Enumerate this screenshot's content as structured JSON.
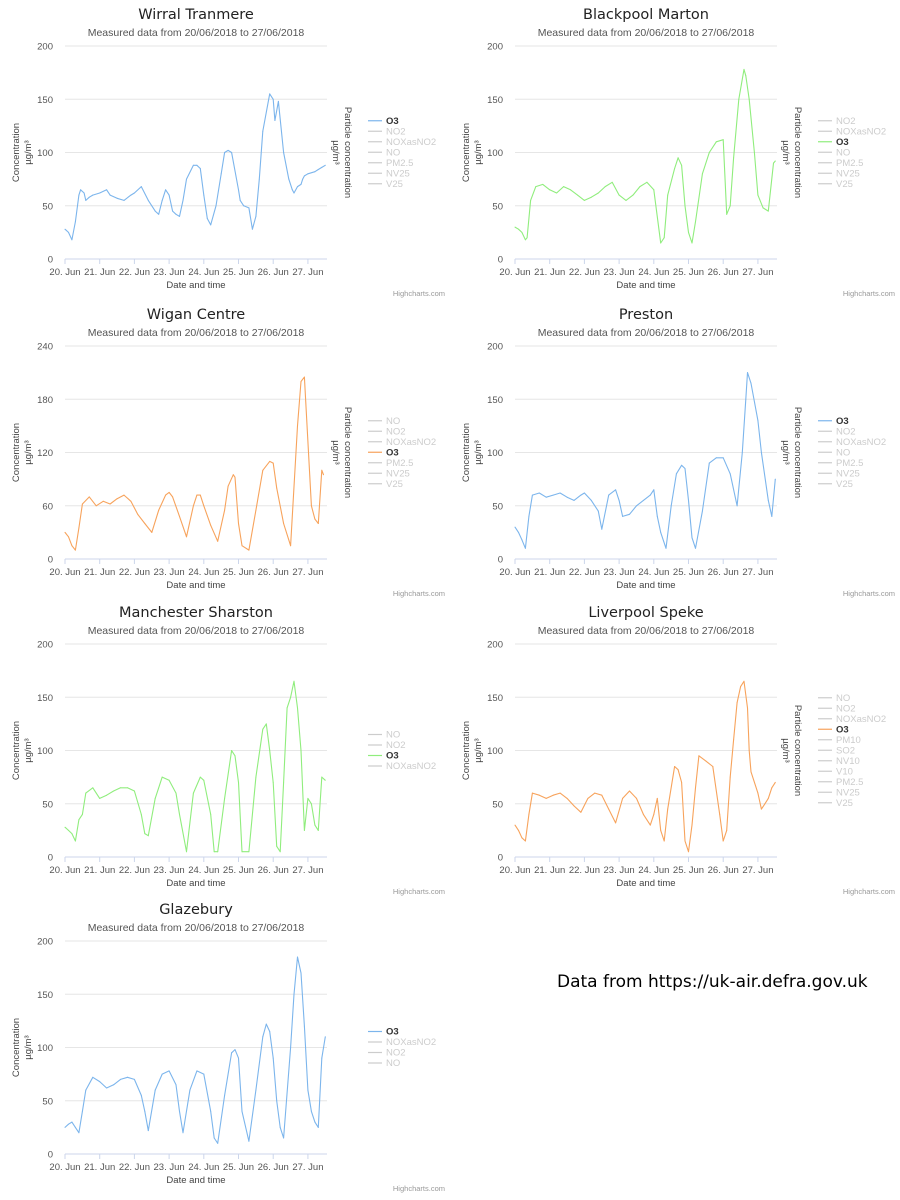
{
  "source_note": "Data from https://uk-air.defra.gov.uk",
  "colors": {
    "blue": "#7cb5ec",
    "green": "#90ed7d",
    "orange": "#f7a35c",
    "inactive": "#cccccc",
    "grid": "#e6e6e6"
  },
  "chart_data": [
    {
      "type": "line",
      "title": "Wirral Tranmere",
      "subtitle": "Measured data from 20/06/2018 to 27/06/2018",
      "xlabel": "Date and time",
      "ylabel": "Concentration",
      "ylabel_unit": "µg/m³",
      "y2label": "Particle concentration",
      "y2label_unit": "µg/m³",
      "credit": "Highcharts.com",
      "x_ticks": [
        "20. Jun",
        "21. Jun",
        "22. Jun",
        "23. Jun",
        "24. Jun",
        "25. Jun",
        "26. Jun",
        "27. Jun"
      ],
      "ylim": [
        0,
        200
      ],
      "y_ticks": [
        0,
        50,
        100,
        150,
        200
      ],
      "xlim": [
        0,
        7.55
      ],
      "legend": [
        "O3",
        "NO2",
        "NOXasNO2",
        "NO",
        "PM2.5",
        "NV25",
        "V25"
      ],
      "active_series": "O3",
      "series_color": "#7cb5ec",
      "series": [
        {
          "name": "O3",
          "x": [
            0,
            0.1,
            0.2,
            0.3,
            0.4,
            0.45,
            0.55,
            0.6,
            0.7,
            0.8,
            1.0,
            1.2,
            1.3,
            1.5,
            1.7,
            1.9,
            2.0,
            2.2,
            2.4,
            2.6,
            2.7,
            2.8,
            2.9,
            3.0,
            3.1,
            3.2,
            3.3,
            3.4,
            3.5,
            3.7,
            3.8,
            3.9,
            4.0,
            4.1,
            4.2,
            4.35,
            4.5,
            4.6,
            4.7,
            4.8,
            5.0,
            5.05,
            5.15,
            5.3,
            5.4,
            5.5,
            5.6,
            5.7,
            5.9,
            6.0,
            6.05,
            6.15,
            6.3,
            6.45,
            6.55,
            6.6,
            6.7,
            6.8,
            6.85,
            6.9,
            7.0,
            7.2,
            7.3,
            7.4,
            7.5
          ],
          "values": [
            28,
            25,
            18,
            35,
            60,
            65,
            62,
            55,
            58,
            60,
            62,
            65,
            60,
            57,
            55,
            60,
            62,
            68,
            55,
            45,
            42,
            55,
            65,
            60,
            45,
            42,
            40,
            55,
            75,
            88,
            88,
            85,
            60,
            38,
            32,
            50,
            80,
            100,
            102,
            100,
            65,
            55,
            50,
            48,
            28,
            40,
            75,
            120,
            155,
            150,
            130,
            148,
            100,
            75,
            65,
            62,
            68,
            70,
            75,
            78,
            80,
            82,
            84,
            86,
            88
          ]
        }
      ]
    },
    {
      "type": "line",
      "title": "Blackpool Marton",
      "subtitle": "Measured data from 20/06/2018 to 27/06/2018",
      "xlabel": "Date and time",
      "ylabel": "Concentration",
      "ylabel_unit": "µg/m³",
      "y2label": "Particle concentration",
      "y2label_unit": "µg/m³",
      "credit": "Highcharts.com",
      "x_ticks": [
        "20. Jun",
        "21. Jun",
        "22. Jun",
        "23. Jun",
        "24. Jun",
        "25. Jun",
        "26. Jun",
        "27. Jun"
      ],
      "ylim": [
        0,
        200
      ],
      "y_ticks": [
        0,
        50,
        100,
        150,
        200
      ],
      "xlim": [
        0,
        7.55
      ],
      "legend": [
        "NO2",
        "NOXasNO2",
        "O3",
        "NO",
        "PM2.5",
        "NV25",
        "V25"
      ],
      "active_series": "O3",
      "series_color": "#90ed7d",
      "series": [
        {
          "name": "O3",
          "x": [
            0,
            0.1,
            0.2,
            0.3,
            0.35,
            0.45,
            0.6,
            0.8,
            1.0,
            1.2,
            1.4,
            1.6,
            1.8,
            2.0,
            2.2,
            2.4,
            2.6,
            2.8,
            3.0,
            3.2,
            3.4,
            3.6,
            3.8,
            4.0,
            4.2,
            4.3,
            4.4,
            4.6,
            4.7,
            4.8,
            4.9,
            5.0,
            5.1,
            5.2,
            5.4,
            5.6,
            5.8,
            6.0,
            6.1,
            6.2,
            6.3,
            6.45,
            6.6,
            6.65,
            6.75,
            6.9,
            7.0,
            7.15,
            7.3,
            7.45,
            7.5
          ],
          "values": [
            30,
            28,
            25,
            18,
            20,
            55,
            68,
            70,
            65,
            62,
            68,
            65,
            60,
            55,
            58,
            62,
            68,
            72,
            60,
            55,
            60,
            68,
            72,
            65,
            15,
            20,
            60,
            85,
            95,
            88,
            50,
            25,
            15,
            35,
            80,
            100,
            110,
            112,
            42,
            50,
            95,
            150,
            178,
            172,
            150,
            100,
            60,
            48,
            45,
            90,
            92
          ]
        }
      ]
    },
    {
      "type": "line",
      "title": "Wigan Centre",
      "subtitle": "Measured data from 20/06/2018 to 27/06/2018",
      "xlabel": "Date and time",
      "ylabel": "Concentration",
      "ylabel_unit": "µg/m³",
      "y2label": "Particle concentration",
      "y2label_unit": "µg/m³",
      "credit": "Highcharts.com",
      "x_ticks": [
        "20. Jun",
        "21. Jun",
        "22. Jun",
        "23. Jun",
        "24. Jun",
        "25. Jun",
        "26. Jun",
        "27. Jun"
      ],
      "ylim": [
        0,
        240
      ],
      "y_ticks": [
        0,
        60,
        120,
        180,
        240
      ],
      "xlim": [
        0,
        7.55
      ],
      "legend": [
        "NO",
        "NO2",
        "NOXasNO2",
        "O3",
        "PM2.5",
        "NV25",
        "V25"
      ],
      "active_series": "O3",
      "series_color": "#f7a35c",
      "series": [
        {
          "name": "O3",
          "x": [
            0,
            0.1,
            0.2,
            0.3,
            0.4,
            0.5,
            0.7,
            0.9,
            1.1,
            1.3,
            1.5,
            1.7,
            1.9,
            2.1,
            2.3,
            2.5,
            2.7,
            2.9,
            3.0,
            3.1,
            3.3,
            3.5,
            3.7,
            3.8,
            3.9,
            4.0,
            4.2,
            4.4,
            4.6,
            4.7,
            4.85,
            4.9,
            5.0,
            5.1,
            5.3,
            5.5,
            5.7,
            5.9,
            6.0,
            6.1,
            6.3,
            6.5,
            6.7,
            6.8,
            6.9,
            7.1,
            7.2,
            7.3,
            7.4,
            7.45
          ],
          "values": [
            30,
            25,
            15,
            10,
            35,
            62,
            70,
            60,
            65,
            62,
            68,
            72,
            65,
            50,
            40,
            30,
            55,
            72,
            75,
            70,
            48,
            25,
            60,
            72,
            72,
            60,
            38,
            20,
            55,
            82,
            95,
            92,
            40,
            15,
            10,
            55,
            100,
            110,
            108,
            80,
            40,
            15,
            150,
            200,
            205,
            60,
            45,
            40,
            100,
            95
          ]
        }
      ]
    },
    {
      "type": "line",
      "title": "Preston",
      "subtitle": "Measured data from 20/06/2018 to 27/06/2018",
      "xlabel": "Date and time",
      "ylabel": "Concentration",
      "ylabel_unit": "µg/m³",
      "y2label": "Particle concentration",
      "y2label_unit": "µg/m³",
      "credit": "Highcharts.com",
      "x_ticks": [
        "20. Jun",
        "21. Jun",
        "22. Jun",
        "23. Jun",
        "24. Jun",
        "25. Jun",
        "26. Jun",
        "27. Jun"
      ],
      "ylim": [
        0,
        200
      ],
      "y_ticks": [
        0,
        50,
        100,
        150,
        200
      ],
      "xlim": [
        0,
        7.55
      ],
      "legend": [
        "O3",
        "NO2",
        "NOXasNO2",
        "NO",
        "PM2.5",
        "NV25",
        "V25"
      ],
      "active_series": "O3",
      "series_color": "#7cb5ec",
      "series": [
        {
          "name": "O3",
          "x": [
            0,
            0.1,
            0.2,
            0.3,
            0.4,
            0.5,
            0.7,
            0.9,
            1.1,
            1.3,
            1.5,
            1.7,
            1.9,
            2.0,
            2.2,
            2.4,
            2.5,
            2.7,
            2.9,
            3.0,
            3.1,
            3.3,
            3.5,
            3.7,
            3.9,
            4.0,
            4.1,
            4.2,
            4.35,
            4.5,
            4.65,
            4.8,
            4.9,
            5.0,
            5.1,
            5.2,
            5.4,
            5.6,
            5.8,
            6.0,
            6.2,
            6.4,
            6.55,
            6.65,
            6.7,
            6.8,
            7.0,
            7.1,
            7.3,
            7.4,
            7.5
          ],
          "values": [
            30,
            25,
            18,
            10,
            40,
            60,
            62,
            58,
            60,
            62,
            58,
            55,
            60,
            62,
            55,
            45,
            28,
            60,
            65,
            55,
            40,
            42,
            50,
            55,
            60,
            65,
            40,
            25,
            10,
            50,
            80,
            88,
            85,
            55,
            20,
            10,
            45,
            90,
            95,
            95,
            80,
            50,
            100,
            150,
            175,
            165,
            130,
            100,
            55,
            40,
            75
          ]
        }
      ]
    },
    {
      "type": "line",
      "title": "Manchester Sharston",
      "subtitle": "Measured data from 20/06/2018 to 27/06/2018",
      "xlabel": "Date and time",
      "ylabel": "Concentration",
      "ylabel_unit": "µg/m³",
      "credit": "Highcharts.com",
      "x_ticks": [
        "20. Jun",
        "21. Jun",
        "22. Jun",
        "23. Jun",
        "24. Jun",
        "25. Jun",
        "26. Jun",
        "27. Jun"
      ],
      "ylim": [
        0,
        200
      ],
      "y_ticks": [
        0,
        50,
        100,
        150,
        200
      ],
      "xlim": [
        0,
        7.55
      ],
      "legend": [
        "NO",
        "NO2",
        "O3",
        "NOXasNO2"
      ],
      "active_series": "O3",
      "series_color": "#90ed7d",
      "series": [
        {
          "name": "O3",
          "x": [
            0,
            0.1,
            0.2,
            0.3,
            0.4,
            0.5,
            0.6,
            0.8,
            1.0,
            1.2,
            1.4,
            1.6,
            1.8,
            2.0,
            2.2,
            2.3,
            2.4,
            2.6,
            2.8,
            3.0,
            3.2,
            3.3,
            3.5,
            3.7,
            3.9,
            4.0,
            4.2,
            4.3,
            4.4,
            4.6,
            4.8,
            4.9,
            5.0,
            5.1,
            5.3,
            5.5,
            5.7,
            5.8,
            5.9,
            6.0,
            6.1,
            6.2,
            6.3,
            6.4,
            6.5,
            6.6,
            6.7,
            6.8,
            6.9,
            7.0,
            7.1,
            7.2,
            7.3,
            7.4,
            7.5
          ],
          "values": [
            28,
            25,
            22,
            15,
            35,
            40,
            60,
            65,
            55,
            58,
            62,
            65,
            65,
            62,
            40,
            22,
            20,
            55,
            75,
            72,
            60,
            40,
            5,
            60,
            75,
            72,
            40,
            5,
            5,
            55,
            100,
            95,
            70,
            5,
            5,
            75,
            120,
            125,
            100,
            70,
            10,
            5,
            70,
            140,
            150,
            165,
            140,
            100,
            25,
            55,
            50,
            30,
            25,
            75,
            72
          ]
        }
      ]
    },
    {
      "type": "line",
      "title": "Liverpool Speke",
      "subtitle": "Measured data from 20/06/2018 to 27/06/2018",
      "xlabel": "Date and time",
      "ylabel": "Concentration",
      "ylabel_unit": "µg/m³",
      "y2label": "Particle concentration",
      "y2label_unit": "µg/m³",
      "credit": "Highcharts.com",
      "x_ticks": [
        "20. Jun",
        "21. Jun",
        "22. Jun",
        "23. Jun",
        "24. Jun",
        "25. Jun",
        "26. Jun",
        "27. Jun"
      ],
      "ylim": [
        0,
        200
      ],
      "y_ticks": [
        0,
        50,
        100,
        150,
        200
      ],
      "xlim": [
        0,
        7.55
      ],
      "legend": [
        "NO",
        "NO2",
        "NOXasNO2",
        "O3",
        "PM10",
        "SO2",
        "NV10",
        "V10",
        "PM2.5",
        "NV25",
        "V25"
      ],
      "active_series": "O3",
      "series_color": "#f7a35c",
      "series": [
        {
          "name": "O3",
          "x": [
            0,
            0.1,
            0.2,
            0.3,
            0.4,
            0.5,
            0.7,
            0.9,
            1.1,
            1.3,
            1.5,
            1.7,
            1.9,
            2.1,
            2.3,
            2.5,
            2.7,
            2.9,
            3.1,
            3.3,
            3.5,
            3.7,
            3.9,
            4.0,
            4.1,
            4.2,
            4.3,
            4.4,
            4.6,
            4.7,
            4.8,
            4.9,
            5.0,
            5.1,
            5.2,
            5.3,
            5.5,
            5.7,
            5.9,
            6.0,
            6.1,
            6.2,
            6.3,
            6.4,
            6.5,
            6.6,
            6.7,
            6.75,
            6.8,
            7.0,
            7.1,
            7.2,
            7.3,
            7.4,
            7.5
          ],
          "values": [
            30,
            25,
            18,
            15,
            40,
            60,
            58,
            55,
            58,
            60,
            55,
            48,
            42,
            55,
            60,
            58,
            45,
            32,
            55,
            62,
            55,
            40,
            30,
            40,
            55,
            25,
            15,
            45,
            85,
            82,
            70,
            15,
            5,
            30,
            65,
            95,
            90,
            85,
            40,
            15,
            25,
            75,
            110,
            145,
            160,
            165,
            140,
            100,
            80,
            60,
            45,
            50,
            55,
            65,
            70
          ]
        }
      ]
    },
    {
      "type": "line",
      "title": "Glazebury",
      "subtitle": "Measured data from 20/06/2018 to 27/06/2018",
      "xlabel": "Date and time",
      "ylabel": "Concentration",
      "ylabel_unit": "µg/m³",
      "credit": "Highcharts.com",
      "x_ticks": [
        "20. Jun",
        "21. Jun",
        "22. Jun",
        "23. Jun",
        "24. Jun",
        "25. Jun",
        "26. Jun",
        "27. Jun"
      ],
      "ylim": [
        0,
        200
      ],
      "y_ticks": [
        0,
        50,
        100,
        150,
        200
      ],
      "xlim": [
        0,
        7.55
      ],
      "legend": [
        "O3",
        "NOXasNO2",
        "NO2",
        "NO"
      ],
      "active_series": "O3",
      "series_color": "#7cb5ec",
      "series": [
        {
          "name": "O3",
          "x": [
            0,
            0.1,
            0.2,
            0.3,
            0.4,
            0.5,
            0.6,
            0.8,
            1.0,
            1.2,
            1.4,
            1.6,
            1.8,
            2.0,
            2.2,
            2.3,
            2.4,
            2.6,
            2.8,
            3.0,
            3.2,
            3.3,
            3.4,
            3.6,
            3.8,
            4.0,
            4.2,
            4.3,
            4.4,
            4.6,
            4.8,
            4.9,
            5.0,
            5.1,
            5.3,
            5.5,
            5.7,
            5.8,
            5.9,
            6.0,
            6.1,
            6.2,
            6.3,
            6.5,
            6.6,
            6.7,
            6.8,
            6.9,
            7.0,
            7.1,
            7.2,
            7.3,
            7.4,
            7.5
          ],
          "values": [
            25,
            28,
            30,
            25,
            20,
            40,
            60,
            72,
            68,
            62,
            65,
            70,
            72,
            70,
            55,
            40,
            22,
            60,
            75,
            78,
            65,
            40,
            20,
            60,
            78,
            75,
            40,
            15,
            10,
            55,
            95,
            98,
            90,
            40,
            12,
            60,
            110,
            122,
            115,
            90,
            50,
            25,
            15,
            100,
            150,
            185,
            170,
            120,
            60,
            40,
            30,
            25,
            90,
            110
          ]
        }
      ]
    }
  ]
}
